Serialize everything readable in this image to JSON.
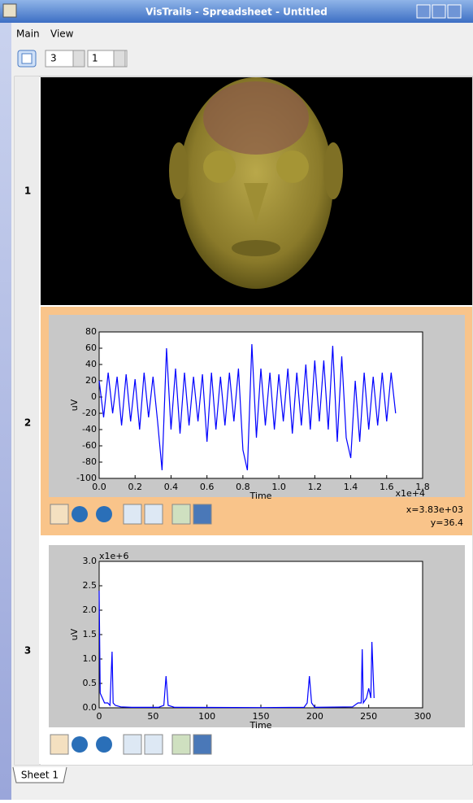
{
  "window": {
    "title": "VisTrails - Spreadsheet - Untitled"
  },
  "menu": [
    "Main",
    "View"
  ],
  "toolbar": {
    "rows": "3",
    "columns": "1"
  },
  "rows": [
    {
      "label": "1"
    },
    {
      "label": "2"
    },
    {
      "label": "3"
    }
  ],
  "cell_2": {
    "status": [
      "x=3.83e+03",
      "y=36.4"
    ]
  },
  "tabs": [
    "Sheet 1"
  ],
  "chart_data": [
    {
      "type": "line",
      "xlabel": "Time",
      "ylabel": "uV",
      "x_offset_label": "x1e+4",
      "xlim": [
        0,
        1.8
      ],
      "xticks": [
        {
          "value": 0,
          "label": "0.0"
        },
        {
          "value": 0.2,
          "label": "0.2"
        },
        {
          "value": 0.4,
          "label": "0.4"
        },
        {
          "value": 0.6,
          "label": "0.6"
        },
        {
          "value": 0.8,
          "label": "0.8"
        },
        {
          "value": 1.0,
          "label": "1.0"
        },
        {
          "value": 1.2,
          "label": "1.2"
        },
        {
          "value": 1.4,
          "label": "1.4"
        },
        {
          "value": 1.6,
          "label": "1.6"
        },
        {
          "value": 1.8,
          "label": "1.8"
        }
      ],
      "ylim": [
        -100,
        80
      ],
      "yticks": [
        -100,
        -80,
        -60,
        -40,
        -20,
        0,
        20,
        40,
        60,
        80
      ],
      "color": "#0000ff",
      "x": [
        0,
        0.025,
        0.05,
        0.075,
        0.1,
        0.125,
        0.15,
        0.175,
        0.2,
        0.225,
        0.25,
        0.275,
        0.3,
        0.325,
        0.35,
        0.375,
        0.4,
        0.425,
        0.45,
        0.475,
        0.5,
        0.525,
        0.55,
        0.575,
        0.6,
        0.625,
        0.65,
        0.675,
        0.7,
        0.725,
        0.75,
        0.775,
        0.8,
        0.825,
        0.85,
        0.875,
        0.9,
        0.925,
        0.95,
        0.975,
        1.0,
        1.025,
        1.05,
        1.075,
        1.1,
        1.125,
        1.15,
        1.175,
        1.2,
        1.225,
        1.25,
        1.275,
        1.3,
        1.325,
        1.35,
        1.375,
        1.4,
        1.425,
        1.45,
        1.475,
        1.5,
        1.525,
        1.55,
        1.575,
        1.6,
        1.625,
        1.65
      ],
      "values": [
        20,
        -25,
        30,
        -20,
        25,
        -35,
        28,
        -30,
        22,
        -40,
        30,
        -25,
        25,
        -30,
        -90,
        60,
        -40,
        35,
        -45,
        30,
        -35,
        25,
        -30,
        28,
        -55,
        30,
        -40,
        25,
        -35,
        30,
        -30,
        35,
        -65,
        -90,
        65,
        -50,
        35,
        -35,
        30,
        -40,
        28,
        -30,
        35,
        -45,
        30,
        -35,
        40,
        -40,
        45,
        -30,
        45,
        -40,
        63,
        -55,
        50,
        -50,
        -75,
        20,
        -55,
        30,
        -40,
        25,
        -35,
        30,
        -30,
        30,
        -20
      ]
    },
    {
      "type": "line",
      "xlabel": "Time",
      "ylabel": "uV",
      "y_offset_label": "x1e+6",
      "xlim": [
        0,
        300
      ],
      "xticks": [
        0,
        50,
        100,
        150,
        200,
        250,
        300
      ],
      "ylim": [
        0,
        3000000
      ],
      "yticks": [
        {
          "value": 0,
          "label": "0.0"
        },
        {
          "value": 500000,
          "label": "0.5"
        },
        {
          "value": 1000000,
          "label": "1.0"
        },
        {
          "value": 1500000,
          "label": "1.5"
        },
        {
          "value": 2000000,
          "label": "2.0"
        },
        {
          "value": 2500000,
          "label": "2.5"
        },
        {
          "value": 3000000,
          "label": "3.0"
        }
      ],
      "color": "#0000ff",
      "x": [
        0,
        1,
        3,
        5,
        8,
        10,
        12,
        13,
        15,
        20,
        30,
        55,
        60,
        62,
        64,
        70,
        150,
        190,
        193,
        195,
        197,
        200,
        235,
        240,
        243,
        244,
        245,
        248,
        250,
        252,
        253,
        255
      ],
      "values": [
        2400000,
        300000,
        200000,
        100000,
        100000,
        50000,
        1150000,
        100000,
        50000,
        20000,
        10000,
        10000,
        50000,
        650000,
        50000,
        10000,
        5000,
        10000,
        100000,
        650000,
        100000,
        10000,
        20000,
        100000,
        100000,
        1200000,
        100000,
        200000,
        400000,
        200000,
        1350000,
        200000
      ]
    }
  ]
}
